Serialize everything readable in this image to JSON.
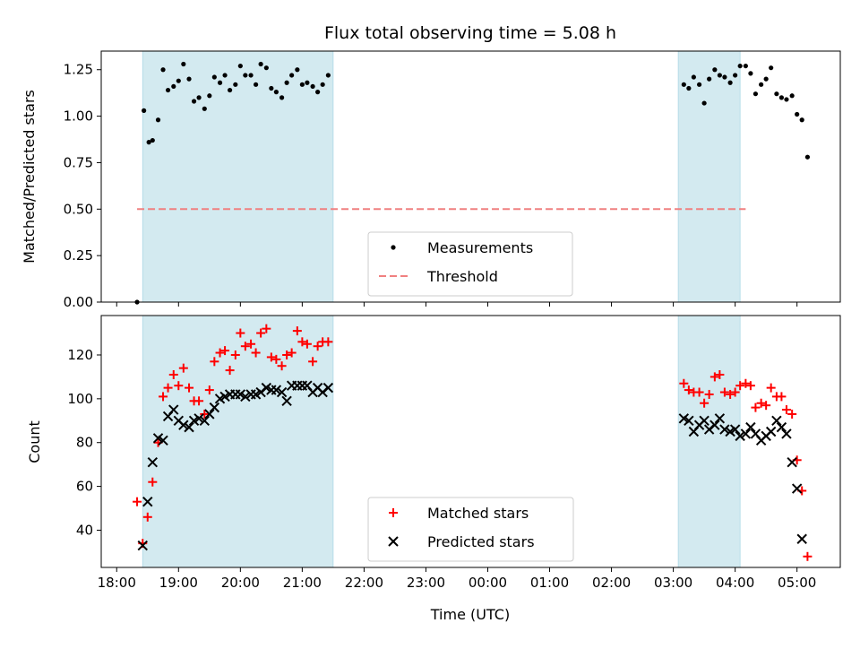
{
  "chart_data": [
    {
      "type": "scatter",
      "title": "Flux total observing time = 5.08 h",
      "xlabel": "",
      "ylabel": "Matched/Predicted stars",
      "ylim": [
        0,
        1.35
      ],
      "yticks": [
        "0.00",
        "0.25",
        "0.50",
        "0.75",
        "1.00",
        "1.25"
      ],
      "x_unit": "hours since 18:00 UTC",
      "xlim": [
        -0.25,
        11.7
      ],
      "observing_windows": [
        [
          0.42,
          3.5
        ],
        [
          9.08,
          10.08
        ]
      ],
      "window_color": "#d3eaf0",
      "legend": {
        "position": "lower-center",
        "items": [
          "Measurements",
          "Threshold"
        ]
      },
      "threshold": {
        "name": "Threshold",
        "value": 0.5,
        "x_range": [
          0.33,
          10.17
        ],
        "color": "#f08080"
      },
      "series": [
        {
          "name": "Measurements",
          "color": "#000000",
          "x": [
            0.33,
            0.44,
            0.52,
            0.58,
            0.67,
            0.75,
            0.83,
            0.92,
            1.0,
            1.08,
            1.17,
            1.25,
            1.33,
            1.42,
            1.5,
            1.58,
            1.67,
            1.75,
            1.83,
            1.92,
            2.0,
            2.08,
            2.17,
            2.25,
            2.33,
            2.42,
            2.5,
            2.58,
            2.67,
            2.75,
            2.83,
            2.92,
            3.0,
            3.08,
            3.17,
            3.25,
            3.33,
            3.42,
            9.17,
            9.25,
            9.33,
            9.42,
            9.5,
            9.58,
            9.67,
            9.75,
            9.83,
            9.92,
            10.0,
            10.08,
            10.17,
            10.25,
            10.33,
            10.42,
            10.5,
            10.58,
            10.67,
            10.75,
            10.83,
            10.92,
            11.0,
            11.08,
            11.17
          ],
          "y": [
            0.0,
            1.03,
            0.86,
            0.87,
            0.98,
            1.25,
            1.14,
            1.16,
            1.19,
            1.28,
            1.2,
            1.08,
            1.1,
            1.04,
            1.11,
            1.21,
            1.18,
            1.22,
            1.14,
            1.17,
            1.27,
            1.22,
            1.22,
            1.17,
            1.28,
            1.26,
            1.15,
            1.13,
            1.1,
            1.18,
            1.22,
            1.25,
            1.17,
            1.18,
            1.16,
            1.13,
            1.17,
            1.22,
            1.17,
            1.15,
            1.21,
            1.17,
            1.07,
            1.2,
            1.25,
            1.22,
            1.21,
            1.18,
            1.22,
            1.27,
            1.27,
            1.23,
            1.12,
            1.17,
            1.2,
            1.26,
            1.12,
            1.1,
            1.09,
            1.11,
            1.01,
            0.98,
            0.78
          ]
        }
      ]
    },
    {
      "type": "scatter",
      "xlabel": "Time (UTC)",
      "ylabel": "Count",
      "ylim": [
        23,
        138
      ],
      "yticks": [
        "40",
        "60",
        "80",
        "100",
        "120"
      ],
      "x_unit": "hours since 18:00 UTC",
      "xlim": [
        -0.25,
        11.7
      ],
      "xticks": [
        "18:00",
        "19:00",
        "20:00",
        "21:00",
        "22:00",
        "23:00",
        "00:00",
        "01:00",
        "02:00",
        "03:00",
        "04:00",
        "05:00"
      ],
      "observing_windows": [
        [
          0.42,
          3.5
        ],
        [
          9.08,
          10.08
        ]
      ],
      "legend": {
        "position": "lower-center",
        "items": [
          "Matched stars",
          "Predicted stars"
        ]
      },
      "series": [
        {
          "name": "Matched stars",
          "marker": "plus",
          "color": "#ff0000",
          "x": [
            0.33,
            0.42,
            0.5,
            0.58,
            0.67,
            0.75,
            0.83,
            0.92,
            1.0,
            1.08,
            1.17,
            1.25,
            1.33,
            1.42,
            1.5,
            1.58,
            1.67,
            1.75,
            1.83,
            1.92,
            2.0,
            2.08,
            2.17,
            2.25,
            2.33,
            2.42,
            2.5,
            2.58,
            2.67,
            2.75,
            2.83,
            2.92,
            3.0,
            3.08,
            3.17,
            3.25,
            3.33,
            3.42,
            9.17,
            9.25,
            9.33,
            9.42,
            9.5,
            9.58,
            9.67,
            9.75,
            9.83,
            9.92,
            10.0,
            10.08,
            10.17,
            10.25,
            10.33,
            10.42,
            10.5,
            10.58,
            10.67,
            10.75,
            10.83,
            10.92,
            11.0,
            11.08,
            11.17
          ],
          "y": [
            53,
            34,
            46,
            62,
            80,
            101,
            105,
            111,
            106,
            114,
            105,
            99,
            99,
            93,
            104,
            117,
            121,
            122,
            113,
            120,
            130,
            124,
            125,
            121,
            130,
            132,
            119,
            118,
            115,
            120,
            121,
            131,
            126,
            125,
            117,
            124,
            126,
            126,
            107,
            104,
            103,
            103,
            98,
            102,
            110,
            111,
            103,
            102,
            103,
            106,
            107,
            106,
            96,
            98,
            97,
            105,
            101,
            101,
            95,
            93,
            72,
            58,
            28
          ]
        },
        {
          "name": "Predicted stars",
          "marker": "x",
          "color": "#000000",
          "x": [
            0.42,
            0.5,
            0.58,
            0.67,
            0.75,
            0.83,
            0.92,
            1.0,
            1.08,
            1.17,
            1.25,
            1.33,
            1.42,
            1.5,
            1.58,
            1.67,
            1.75,
            1.83,
            1.92,
            2.0,
            2.08,
            2.17,
            2.25,
            2.33,
            2.42,
            2.5,
            2.58,
            2.67,
            2.75,
            2.83,
            2.92,
            3.0,
            3.08,
            3.17,
            3.25,
            3.33,
            3.42,
            9.17,
            9.25,
            9.33,
            9.42,
            9.5,
            9.58,
            9.67,
            9.75,
            9.83,
            9.92,
            10.0,
            10.08,
            10.17,
            10.25,
            10.33,
            10.42,
            10.5,
            10.58,
            10.67,
            10.75,
            10.83,
            10.92,
            11.0,
            11.08
          ],
          "y": [
            33,
            53,
            71,
            82,
            81,
            92,
            95,
            90,
            88,
            87,
            90,
            91,
            90,
            93,
            96,
            100,
            101,
            102,
            102,
            102,
            101,
            102,
            102,
            103,
            105,
            104,
            104,
            103,
            99,
            106,
            106,
            106,
            106,
            103,
            105,
            103,
            105,
            91,
            90,
            85,
            88,
            90,
            86,
            88,
            91,
            86,
            85,
            86,
            83,
            84,
            87,
            84,
            81,
            83,
            85,
            90,
            87,
            84,
            71,
            59,
            36
          ]
        }
      ]
    }
  ]
}
